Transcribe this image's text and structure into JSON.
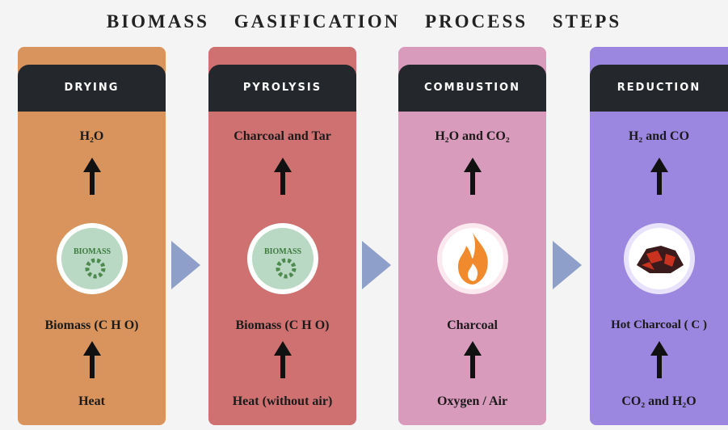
{
  "title": "BIOMASS GASIFICATION PROCESS STEPS",
  "steps": [
    {
      "label": "DRYING",
      "output": "H₂O",
      "icon_text": "BIOMASS",
      "input": "Biomass (C H O)",
      "source": "Heat"
    },
    {
      "label": "PYROLYSIS",
      "output": "Charcoal and Tar",
      "icon_text": "BIOMASS",
      "input": "Biomass (C H O)",
      "source": "Heat (without air)"
    },
    {
      "label": "COMBUSTION",
      "output": "H₂O and CO₂",
      "input": "Charcoal",
      "source": "Oxygen / Air"
    },
    {
      "label": "REDUCTION",
      "output": "H₂ and CO",
      "input": "Hot Charcoal ( C )",
      "source": "CO₂ and H₂O"
    }
  ]
}
